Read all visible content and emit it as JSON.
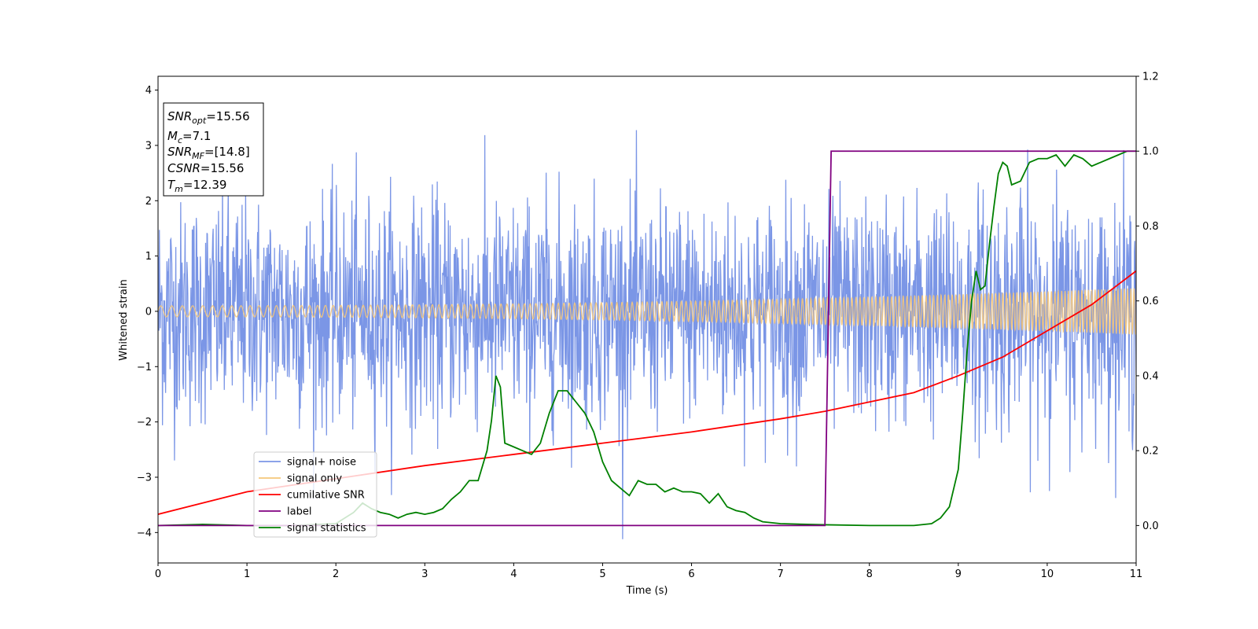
{
  "chart_data": {
    "type": "line",
    "xlabel": "Time (s)",
    "ylabel": "Whitened strain",
    "y2label": "",
    "xlim": [
      0,
      11
    ],
    "ylim": [
      -4.55,
      4.25
    ],
    "y2lim": [
      -0.1,
      1.2
    ],
    "x_ticks": [
      0,
      1,
      2,
      3,
      4,
      5,
      6,
      7,
      8,
      9,
      10,
      11
    ],
    "y_ticks": [
      4,
      3,
      2,
      1,
      0,
      -1,
      -2,
      -3,
      -4
    ],
    "y2_ticks": [
      1.2,
      1.0,
      0.8,
      0.6,
      0.4,
      0.2,
      0.0
    ],
    "annotation": {
      "lines": [
        {
          "name": "SNR",
          "sub": "opt",
          "value": "=15.56"
        },
        {
          "name": "M",
          "sub": "c",
          "value": "=7.1"
        },
        {
          "name": "SNR",
          "sub": "MF",
          "value": "=[14.8]"
        },
        {
          "name": "CSNR",
          "sub": "",
          "value": "=15.56"
        },
        {
          "name": "T",
          "sub": "m",
          "value": "=12.39"
        }
      ]
    },
    "legend": {
      "placement": "lower-left",
      "entries": [
        {
          "label": "signal+ noise",
          "color": "#7b96e6"
        },
        {
          "label": "signal only",
          "color": "#f5c77a"
        },
        {
          "label": "cumilative SNR",
          "color": "#ff0000"
        },
        {
          "label": "label",
          "color": "#800080"
        },
        {
          "label": "signal statistics",
          "color": "#008000"
        }
      ]
    },
    "series": [
      {
        "name": "signal+ noise",
        "axis": "left",
        "color": "#7b96e6",
        "description_values": {
          "noise_std": 1.0,
          "samples": 2200
        }
      },
      {
        "name": "signal only",
        "axis": "left",
        "color": "#f5c77a",
        "amplitude_start": 0.1,
        "amplitude_end": 0.42
      },
      {
        "name": "cumilative SNR",
        "axis": "right",
        "color": "#ff0000",
        "x": [
          0,
          1,
          2,
          3,
          4,
          5,
          6,
          7,
          7.5,
          8,
          8.5,
          9,
          9.5,
          10,
          10.5,
          11
        ],
        "y": [
          0.03,
          0.09,
          0.125,
          0.16,
          0.19,
          0.22,
          0.25,
          0.285,
          0.305,
          0.33,
          0.355,
          0.4,
          0.45,
          0.52,
          0.59,
          0.68
        ]
      },
      {
        "name": "label",
        "axis": "right",
        "color": "#800080",
        "x": [
          0,
          7.5,
          7.57,
          11
        ],
        "y": [
          0.0,
          0.0,
          1.0,
          1.0
        ]
      },
      {
        "name": "signal statistics",
        "axis": "right",
        "color": "#008000",
        "x": [
          0,
          0.5,
          1,
          1.5,
          2,
          2.2,
          2.3,
          2.4,
          2.5,
          2.6,
          2.7,
          2.8,
          2.9,
          3.0,
          3.1,
          3.2,
          3.3,
          3.4,
          3.5,
          3.6,
          3.7,
          3.75,
          3.8,
          3.85,
          3.9,
          4.0,
          4.1,
          4.2,
          4.3,
          4.4,
          4.5,
          4.6,
          4.7,
          4.8,
          4.9,
          5.0,
          5.1,
          5.2,
          5.3,
          5.4,
          5.5,
          5.6,
          5.7,
          5.8,
          5.9,
          6.0,
          6.1,
          6.2,
          6.3,
          6.4,
          6.5,
          6.6,
          6.7,
          6.8,
          7.0,
          7.5,
          8.0,
          8.5,
          8.7,
          8.8,
          8.9,
          9.0,
          9.05,
          9.1,
          9.15,
          9.2,
          9.25,
          9.3,
          9.35,
          9.4,
          9.45,
          9.5,
          9.55,
          9.6,
          9.7,
          9.8,
          9.9,
          10.0,
          10.1,
          10.2,
          10.3,
          10.4,
          10.5,
          10.6,
          10.7,
          10.8,
          10.9,
          11.0
        ],
        "y": [
          0.0,
          0.003,
          0.0,
          0.0,
          0.005,
          0.035,
          0.06,
          0.045,
          0.035,
          0.03,
          0.02,
          0.03,
          0.035,
          0.03,
          0.035,
          0.045,
          0.07,
          0.09,
          0.12,
          0.12,
          0.2,
          0.28,
          0.4,
          0.37,
          0.22,
          0.21,
          0.2,
          0.19,
          0.22,
          0.3,
          0.36,
          0.36,
          0.33,
          0.3,
          0.25,
          0.17,
          0.12,
          0.1,
          0.08,
          0.12,
          0.11,
          0.11,
          0.09,
          0.1,
          0.09,
          0.09,
          0.085,
          0.06,
          0.085,
          0.05,
          0.04,
          0.035,
          0.02,
          0.01,
          0.005,
          0.002,
          0.0,
          0.0,
          0.005,
          0.02,
          0.05,
          0.15,
          0.3,
          0.47,
          0.6,
          0.68,
          0.63,
          0.64,
          0.75,
          0.85,
          0.94,
          0.97,
          0.96,
          0.91,
          0.92,
          0.97,
          0.98,
          0.98,
          0.99,
          0.96,
          0.99,
          0.98,
          0.96,
          0.97,
          0.98,
          0.99,
          1.0,
          1.0
        ]
      }
    ]
  }
}
